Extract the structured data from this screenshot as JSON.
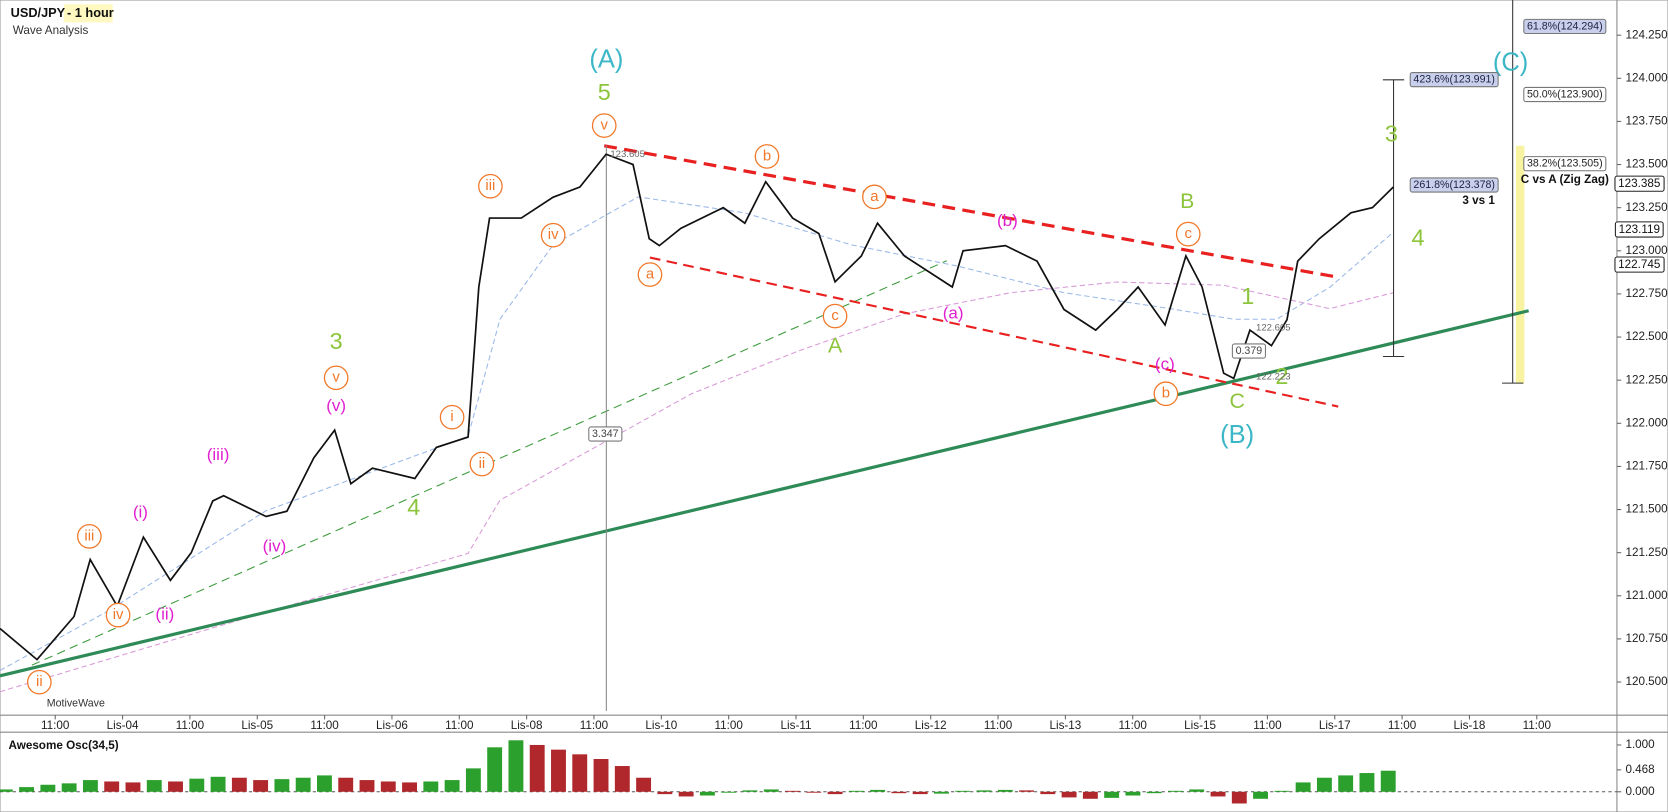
{
  "header": {
    "symbol": "USD/JPY",
    "timeframe": "- 1 hour",
    "subtitle": "Wave Analysis",
    "brand": "MotiveWave"
  },
  "chart_data": [
    {
      "type": "line",
      "color": "#111111",
      "x": [
        -0.82,
        -0.27,
        0.28,
        0.52,
        0.92,
        1.31,
        1.71,
        2.02,
        2.34,
        2.5,
        3.13,
        3.44,
        3.84,
        4.15,
        4.39,
        4.71,
        5.34,
        5.66,
        6.13,
        6.29,
        6.45,
        6.92,
        7.39,
        7.79,
        8.18,
        8.58,
        8.82,
        8.97,
        9.29,
        9.92,
        10.24,
        10.55,
        10.95,
        11.34,
        11.58,
        11.97,
        12.21,
        12.61,
        13.32,
        13.48,
        14.11,
        14.58,
        14.98,
        15.45,
        15.77,
        16.08,
        16.48,
        16.79,
        17.03,
        17.35,
        17.5,
        17.74,
        18.06,
        18.29,
        18.45,
        18.77,
        19.24,
        19.56,
        19.87
      ],
      "values": [
        120.81,
        120.63,
        120.88,
        121.21,
        120.94,
        121.34,
        121.09,
        121.25,
        121.55,
        121.58,
        121.46,
        121.49,
        121.8,
        121.96,
        121.65,
        121.74,
        121.68,
        121.86,
        121.92,
        122.79,
        123.19,
        123.19,
        123.31,
        123.37,
        123.56,
        123.5,
        123.07,
        123.03,
        123.13,
        123.25,
        123.16,
        123.4,
        123.19,
        123.1,
        122.82,
        122.97,
        123.16,
        122.97,
        122.79,
        123.0,
        123.03,
        122.94,
        122.66,
        122.54,
        122.66,
        122.79,
        122.57,
        122.97,
        122.79,
        122.29,
        122.26,
        122.54,
        122.45,
        122.6,
        122.94,
        123.07,
        123.22,
        123.25,
        123.37
      ],
      "xlim": [
        -0.82,
        23.19
      ],
      "xticks": [
        {
          "value": 0,
          "label": "11:00"
        },
        {
          "value": 1,
          "label": "Lis-04"
        },
        {
          "value": 2,
          "label": "11:00"
        },
        {
          "value": 3,
          "label": "Lis-05"
        },
        {
          "value": 4,
          "label": "11:00"
        },
        {
          "value": 5,
          "label": "Lis-06"
        },
        {
          "value": 6,
          "label": "11:00"
        },
        {
          "value": 7,
          "label": "Lis-08"
        },
        {
          "value": 8,
          "label": "11:00"
        },
        {
          "value": 9,
          "label": "Lis-10"
        },
        {
          "value": 10,
          "label": "11:00"
        },
        {
          "value": 11,
          "label": "Lis-11"
        },
        {
          "value": 12,
          "label": "11:00"
        },
        {
          "value": 13,
          "label": "Lis-12"
        },
        {
          "value": 14,
          "label": "11:00"
        },
        {
          "value": 15,
          "label": "Lis-13"
        },
        {
          "value": 16,
          "label": "11:00"
        },
        {
          "value": 17,
          "label": "Lis-15"
        },
        {
          "value": 18,
          "label": "11:00"
        },
        {
          "value": 19,
          "label": "Lis-17"
        },
        {
          "value": 20,
          "label": "11:00"
        },
        {
          "value": 21,
          "label": "Lis-18"
        },
        {
          "value": 22,
          "label": "11:00"
        }
      ],
      "ylim": [
        120.308,
        124.454
      ],
      "yticks": [
        {
          "value": 120.5,
          "label": "120.500"
        },
        {
          "value": 120.75,
          "label": "120.750"
        },
        {
          "value": 121,
          "label": "121.000"
        },
        {
          "value": 121.25,
          "label": "121.250"
        },
        {
          "value": 121.5,
          "label": "121.500"
        },
        {
          "value": 121.75,
          "label": "121.750"
        },
        {
          "value": 122,
          "label": "122.000"
        },
        {
          "value": 122.25,
          "label": "122.250"
        },
        {
          "value": 122.5,
          "label": "122.500"
        },
        {
          "value": 122.75,
          "label": "122.750"
        },
        {
          "value": 123,
          "label": "123.000"
        },
        {
          "value": 123.25,
          "label": "123.250"
        },
        {
          "value": 123.5,
          "label": "123.500"
        },
        {
          "value": 123.75,
          "label": "123.750"
        },
        {
          "value": 124,
          "label": "124.000"
        },
        {
          "value": 124.25,
          "label": "124.250"
        }
      ],
      "annotations": [
        {
          "text": "(A)",
          "color": "#3bb7c7",
          "style": "plain"
        },
        {
          "text": "5",
          "color": "#8cc43c",
          "style": "plain"
        },
        {
          "text": "v",
          "color": "#f07828",
          "style": "circle"
        },
        {
          "text": "(C)",
          "color": "#3bb7c7",
          "style": "plain"
        },
        {
          "text": "3",
          "color": "#8cc43c",
          "style": "plain"
        },
        {
          "text": "4",
          "color": "#8cc43c",
          "style": "plain"
        },
        {
          "text": "B",
          "color": "#8cc43c",
          "style": "plain"
        },
        {
          "text": "c",
          "color": "#f07828",
          "style": "circle"
        },
        {
          "text": "1",
          "color": "#8cc43c",
          "style": "plain"
        },
        {
          "text": "2",
          "color": "#8cc43c",
          "style": "plain"
        },
        {
          "text": "C",
          "color": "#8cc43c",
          "style": "plain"
        },
        {
          "text": "(B)",
          "color": "#3bb7c7",
          "style": "plain"
        },
        {
          "text": "(c)",
          "color": "#e020d0",
          "style": "plain"
        },
        {
          "text": "b",
          "color": "#f07828",
          "style": "circle"
        },
        {
          "text": "(b)",
          "color": "#e020d0",
          "style": "plain"
        },
        {
          "text": "(a)",
          "color": "#e020d0",
          "style": "plain"
        },
        {
          "text": "a",
          "color": "#f07828",
          "style": "circle"
        },
        {
          "text": "c",
          "color": "#f07828",
          "style": "circle"
        },
        {
          "text": "A",
          "color": "#8cc43c",
          "style": "plain"
        },
        {
          "text": "b",
          "color": "#f07828",
          "style": "circle"
        },
        {
          "text": "a",
          "color": "#f07828",
          "style": "circle"
        },
        {
          "text": "iii",
          "color": "#f07828",
          "style": "circle"
        },
        {
          "text": "iv",
          "color": "#f07828",
          "style": "circle"
        },
        {
          "text": "i",
          "color": "#f07828",
          "style": "circle"
        },
        {
          "text": "ii",
          "color": "#f07828",
          "style": "circle"
        },
        {
          "text": "3",
          "color": "#8cc43c",
          "style": "plain"
        },
        {
          "text": "v",
          "color": "#f07828",
          "style": "circle"
        },
        {
          "text": "(v)",
          "color": "#e020d0",
          "style": "plain"
        },
        {
          "text": "4",
          "color": "#8cc43c",
          "style": "plain"
        },
        {
          "text": "(iii)",
          "color": "#e020d0",
          "style": "plain"
        },
        {
          "text": "(iv)",
          "color": "#e020d0",
          "style": "plain"
        },
        {
          "text": "(i)",
          "color": "#e020d0",
          "style": "plain"
        },
        {
          "text": "(ii)",
          "color": "#e020d0",
          "style": "plain"
        },
        {
          "text": "iii",
          "color": "#f07828",
          "style": "circle"
        },
        {
          "text": "iv",
          "color": "#f07828",
          "style": "circle"
        },
        {
          "text": "ii",
          "color": "#f07828",
          "style": "circle"
        },
        {
          "text": "123.605",
          "color": "#666666",
          "style": "plain"
        },
        {
          "text": "3.347",
          "color": "#444444",
          "style": "box"
        },
        {
          "text": "122.605",
          "color": "#666666",
          "style": "plain"
        },
        {
          "text": "0.379",
          "color": "#444444",
          "style": "box"
        },
        {
          "text": "122.223",
          "color": "#666666",
          "style": "plain"
        },
        {
          "text": "C vs A (Zig Zag)",
          "color": "#111111",
          "style": "bold"
        },
        {
          "text": "3 vs 1",
          "color": "#111111",
          "style": "bold"
        },
        {
          "text": "61.8%(124.294)",
          "color": "#222244",
          "style": "fib"
        },
        {
          "text": "423.6%(123.991)",
          "color": "#222244",
          "style": "fib"
        },
        {
          "text": "50.0%(123.900)",
          "color": "#222222",
          "style": "box"
        },
        {
          "text": "38.2%(123.505)",
          "color": "#222222",
          "style": "box"
        },
        {
          "text": "261.8%(123.378)",
          "color": "#222244",
          "style": "fib"
        },
        {
          "text": "123.385",
          "color": "#111111",
          "style": "badge"
        },
        {
          "text": "123.119",
          "color": "#111111",
          "style": "badge"
        },
        {
          "text": "122.745",
          "color": "#111111",
          "style": "badge"
        }
      ]
    },
    {
      "type": "bar",
      "title": "Awesome Osc(34,5)",
      "up_color": "#2ca02c",
      "down_color": "#b0282c",
      "values": [
        0.05,
        0.1,
        0.15,
        0.18,
        0.25,
        0.22,
        0.2,
        0.25,
        0.22,
        0.28,
        0.32,
        0.3,
        0.25,
        0.27,
        0.3,
        0.35,
        0.3,
        0.25,
        0.22,
        0.2,
        0.22,
        0.25,
        0.5,
        0.95,
        1.1,
        1.0,
        0.9,
        0.8,
        0.7,
        0.55,
        0.3,
        -0.05,
        -0.1,
        -0.08,
        -0.02,
        0.03,
        0.05,
        0.02,
        -0.02,
        -0.05,
        0.02,
        0.04,
        -0.03,
        -0.05,
        -0.04,
        0.02,
        0.03,
        0.04,
        0.03,
        -0.05,
        -0.12,
        -0.15,
        -0.13,
        -0.08,
        -0.03,
        0.02,
        0.05,
        -0.1,
        -0.25,
        -0.15,
        0.02,
        0.2,
        0.3,
        0.35,
        0.4,
        0.45
      ],
      "ylim": [
        -0.432,
        1.273
      ],
      "yticks": [
        {
          "value": 0,
          "label": "0.000"
        },
        {
          "value": 0.468,
          "label": "0.468"
        },
        {
          "value": 1,
          "label": "1.000"
        }
      ]
    }
  ]
}
